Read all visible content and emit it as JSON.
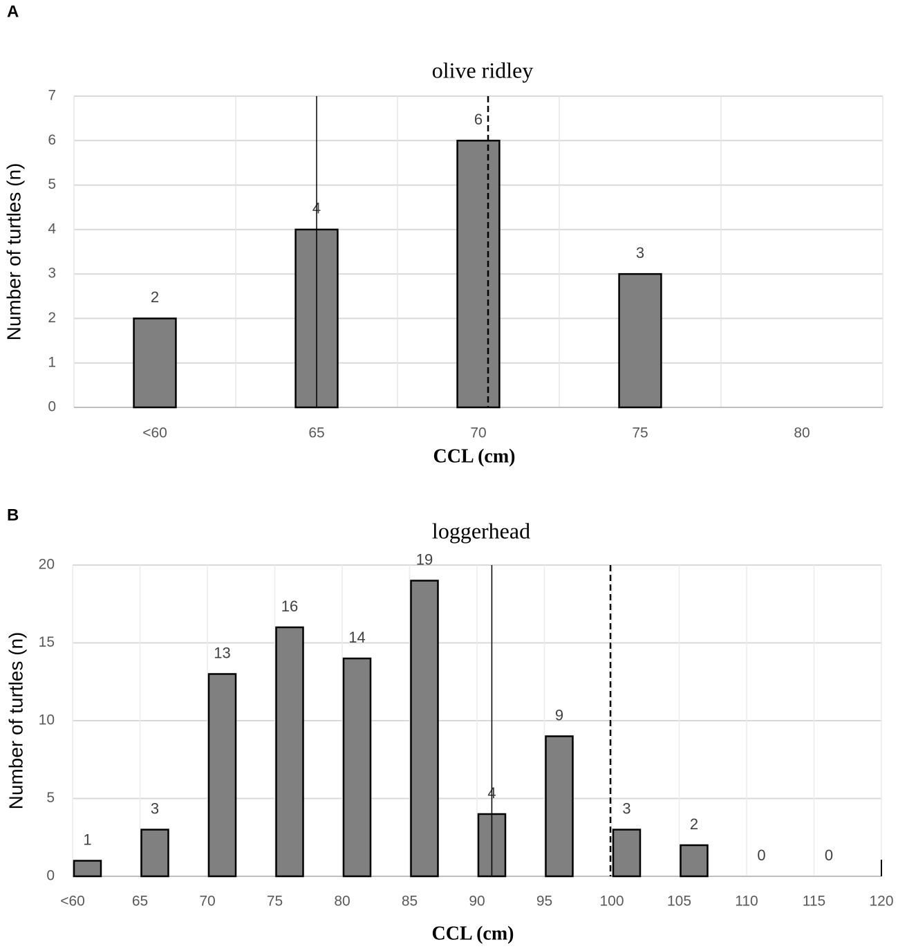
{
  "chart_data": [
    {
      "type": "bar",
      "panel": "A",
      "title": "olive ridley",
      "x_label": "CCL (cm)",
      "y_label": "Number of turtles (n)",
      "x": [
        60,
        65,
        70,
        75,
        80
      ],
      "values": [
        2,
        4,
        6,
        3,
        null
      ],
      "color": "#808080",
      "xlim": [
        57.5,
        82.5
      ],
      "xticks": [
        {
          "value": 60,
          "label": "<60"
        },
        65,
        70,
        75,
        80
      ],
      "ylim": [
        0,
        7
      ],
      "yticks": [
        0,
        1,
        2,
        3,
        4,
        5,
        6,
        7
      ],
      "grid": true,
      "bar_align": "center",
      "reference_lines": [
        {
          "value": 65,
          "style": "solid"
        },
        {
          "value": 70.3,
          "style": "dashed"
        }
      ]
    },
    {
      "type": "bar",
      "panel": "B",
      "title": "loggerhead",
      "x_label": "CCL (cm)",
      "y_label": "Number of turtles (n)",
      "x": [
        60,
        65,
        70,
        75,
        80,
        85,
        90,
        95,
        100,
        105,
        110,
        115
      ],
      "values": [
        1,
        3,
        13,
        16,
        14,
        19,
        4,
        9,
        3,
        2,
        0,
        0
      ],
      "color": "#808080",
      "xlim": [
        60,
        120
      ],
      "xticks": [
        {
          "value": 60,
          "label": "<60"
        },
        65,
        70,
        75,
        80,
        85,
        90,
        95,
        100,
        105,
        110,
        115,
        120
      ],
      "ylim": [
        0,
        20
      ],
      "yticks": [
        0,
        5,
        10,
        15,
        20
      ],
      "grid": true,
      "bar_align": "edge",
      "reference_lines": [
        {
          "value": 91.1,
          "style": "solid"
        },
        {
          "value": 99.9,
          "style": "dashed"
        }
      ]
    }
  ]
}
